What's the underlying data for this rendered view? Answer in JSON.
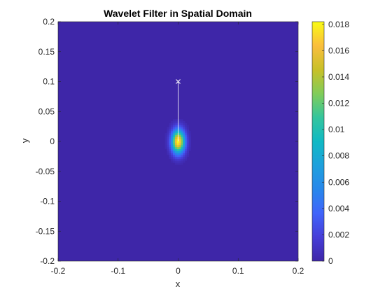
{
  "chart_data": {
    "type": "heatmap",
    "title": "Wavelet Filter in Spatial Domain",
    "xlabel": "x",
    "ylabel": "y",
    "xlim": [
      -0.2,
      0.2
    ],
    "ylim": [
      -0.2,
      0.2
    ],
    "xticks": [
      -0.2,
      -0.1,
      0,
      0.1,
      0.2
    ],
    "xtick_labels": [
      "-0.2",
      "-0.1",
      "0",
      "0.1",
      "0.2"
    ],
    "yticks": [
      -0.2,
      -0.15,
      -0.1,
      -0.05,
      0,
      0.05,
      0.1,
      0.15,
      0.2
    ],
    "ytick_labels": [
      "-0.2",
      "-0.15",
      "-0.1",
      "-0.05",
      "0",
      "0.05",
      "0.1",
      "0.15",
      "0.2"
    ],
    "colorbar": {
      "limits": [
        0,
        0.0182
      ],
      "ticks": [
        0,
        0.002,
        0.004,
        0.006,
        0.008,
        0.01,
        0.012,
        0.014,
        0.016,
        0.018
      ],
      "tick_labels": [
        "0",
        "0.002",
        "0.004",
        "0.006",
        "0.008",
        "0.01",
        "0.012",
        "0.014",
        "0.016",
        "0.018"
      ],
      "colormap": "parula"
    },
    "blob": {
      "center": [
        0,
        0
      ],
      "peak": 0.0182,
      "sigma_x": 0.0075,
      "sigma_y": 0.0135
    },
    "direction_line": {
      "from": [
        0,
        0
      ],
      "to": [
        0,
        0.1
      ],
      "marker": "x",
      "color": "#ffffff"
    },
    "background_color": "#3e26a8",
    "grid": false
  }
}
